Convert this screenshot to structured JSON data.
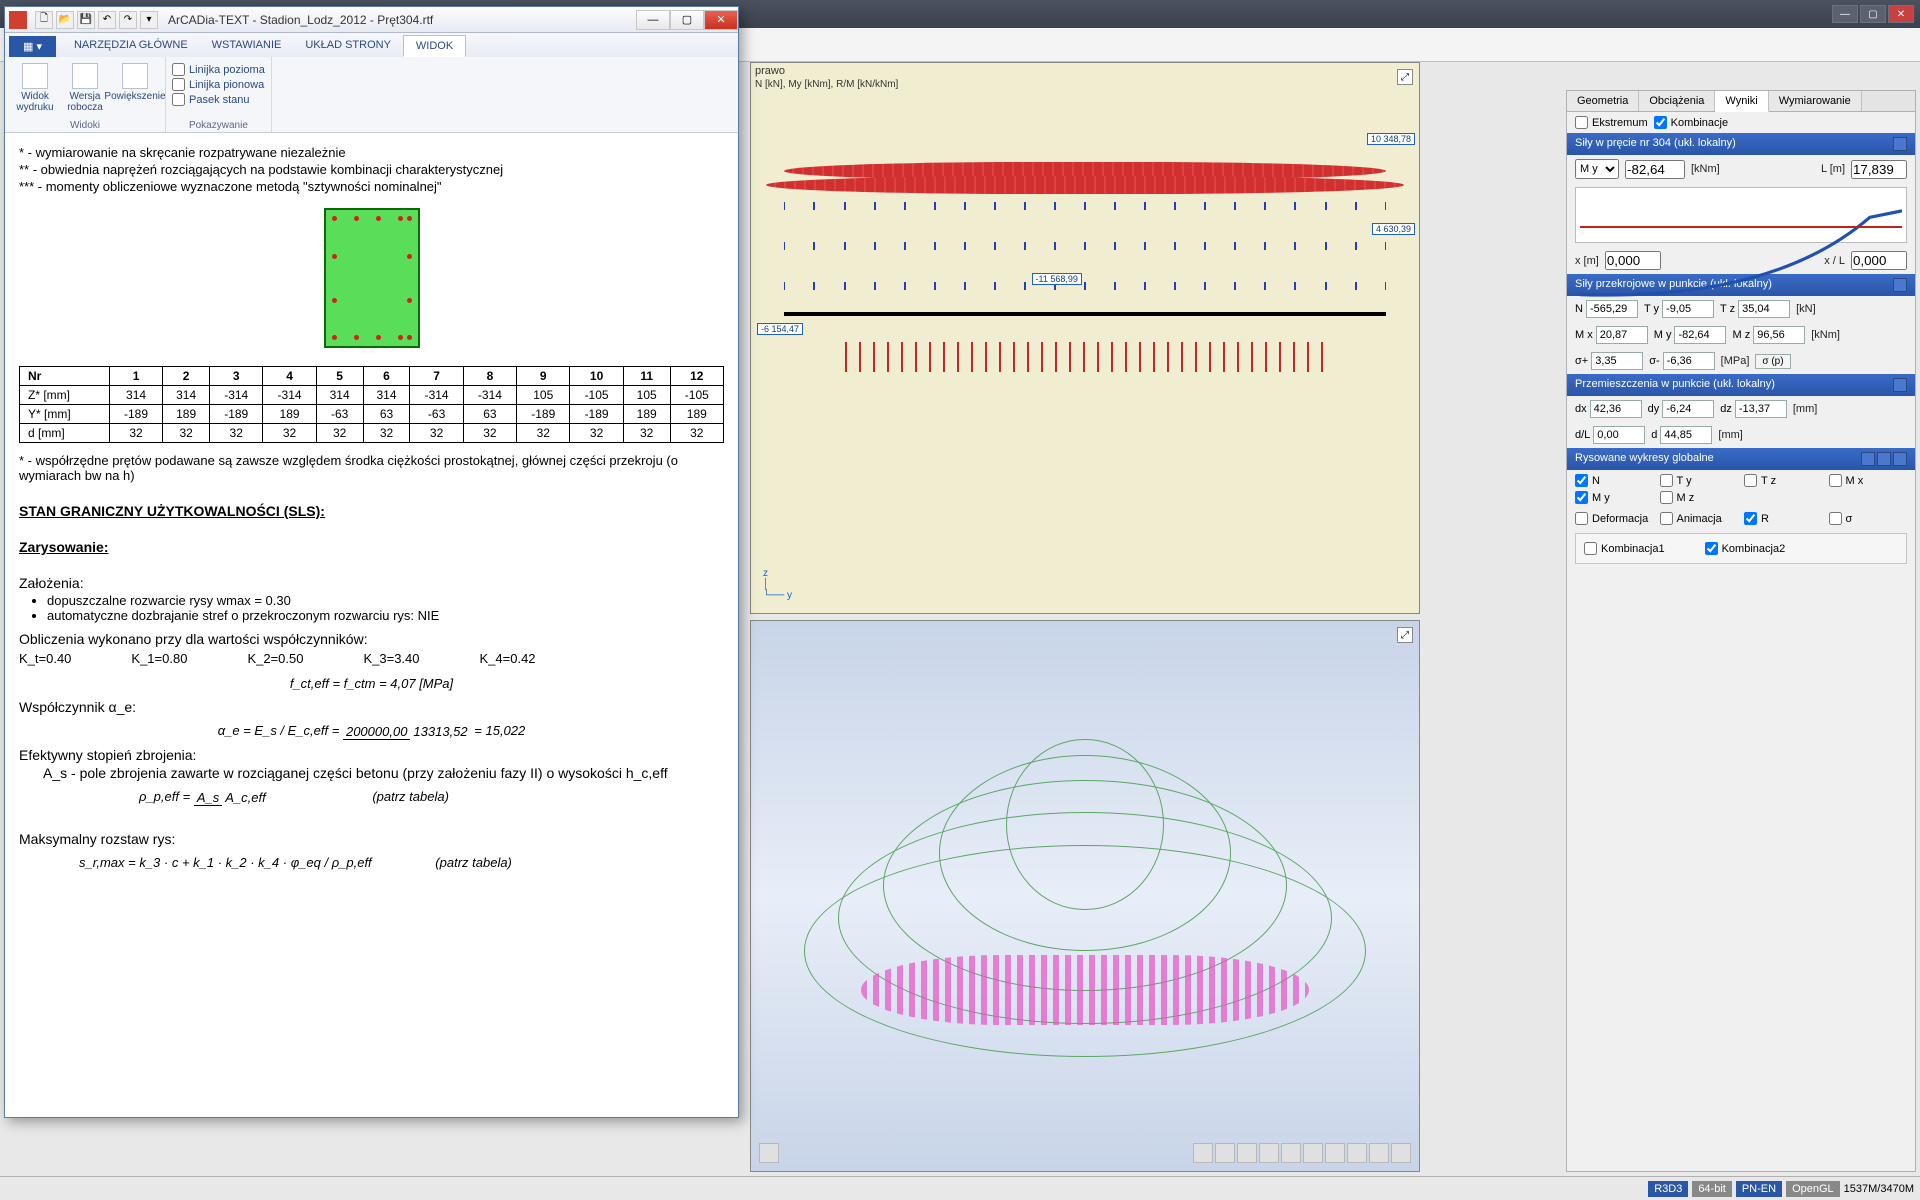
{
  "bg": {
    "toolbar_icon_count": 22
  },
  "viewports": {
    "top": {
      "label": "prawo",
      "units": "N [kN], My [kNm], R/M [kN/kNm]",
      "tags": [
        "10 348,78",
        "4 630,39",
        "-11 568,99",
        "-6 154,47"
      ],
      "axes": "x — y — z"
    }
  },
  "side": {
    "tabs": [
      "Geometria",
      "Obciążenia",
      "Wyniki",
      "Wymiarowanie"
    ],
    "active_tab": 2,
    "row1": {
      "ekstremum": "Ekstremum",
      "kombinacje": "Kombinacje"
    },
    "sec1": {
      "title": "Siły w pręcie nr 304 (ukł. lokalny)",
      "moment_type": "M y",
      "moment_val": "-82,64",
      "moment_unit": "[kNm]",
      "L_lbl": "L [m]",
      "L_val": "17,839",
      "x_lbl": "x [m]",
      "x_val": "0,000",
      "xL_lbl": "x / L",
      "xL_val": "0,000"
    },
    "sec2": {
      "title": "Siły przekrojowe w punkcie (ukł. lokalny)",
      "rows": [
        {
          "l1": "N",
          "v1": "-565,29",
          "l2": "T y",
          "v2": "-9,05",
          "l3": "T z",
          "v3": "35,04",
          "u": "[kN]"
        },
        {
          "l1": "M x",
          "v1": "20,87",
          "l2": "M y",
          "v2": "-82,64",
          "l3": "M z",
          "v3": "96,56",
          "u": "[kNm]"
        },
        {
          "l1": "σ+",
          "v1": "3,35",
          "l2": "σ-",
          "v2": "-6,36",
          "l3": "",
          "v3": "",
          "u": "[MPa]"
        }
      ],
      "sigma_btn": "σ (p)"
    },
    "sec3": {
      "title": "Przemieszczenia w punkcie (ukł. lokalny)",
      "rows": [
        {
          "l1": "dx",
          "v1": "42,36",
          "l2": "dy",
          "v2": "-6,24",
          "l3": "dz",
          "v3": "-13,37",
          "u": "[mm]"
        },
        {
          "l1": "d/L",
          "v1": "0,00",
          "l2": "",
          "v2": "",
          "l3": "d",
          "v3": "44,85",
          "u": "[mm]"
        }
      ]
    },
    "sec4": {
      "title": "Rysowane wykresy globalne",
      "checks": [
        "N",
        "T y",
        "T z",
        "M x",
        "M y",
        "M z"
      ],
      "checked": [
        true,
        false,
        false,
        false,
        true,
        false
      ],
      "row2": [
        {
          "lbl": "Deformacja",
          "c": false
        },
        {
          "lbl": "Animacja",
          "c": false
        },
        {
          "lbl": "R",
          "c": true
        },
        {
          "lbl": "σ",
          "c": false
        }
      ],
      "komb": [
        {
          "lbl": "Kombinacja1",
          "c": false
        },
        {
          "lbl": "Kombinacja2",
          "c": true
        }
      ]
    }
  },
  "status": {
    "pills": [
      "R3D3",
      "64-bit",
      "PN-EN",
      "OpenGL"
    ],
    "mem": "1537M/3470M"
  },
  "arc": {
    "title": "ArCADia-TEXT - Stadion_Lodz_2012 - Pręt304.rtf",
    "ribbon_tabs": [
      "NARZĘDZIA GŁÓWNE",
      "WSTAWIANIE",
      "UKŁAD STRONY",
      "WIDOK"
    ],
    "active_ribbon": 3,
    "group_widoki": {
      "label": "Widoki",
      "btns": [
        {
          "t": "Widok wydruku"
        },
        {
          "t": "Wersja robocza"
        },
        {
          "t": "Powiększenie"
        }
      ]
    },
    "group_pokaz": {
      "label": "Pokazywanie",
      "checks": [
        "Linijka pozioma",
        "Linijka pionowa",
        "Pasek stanu"
      ]
    },
    "doc": {
      "notes": [
        "* - wymiarowanie na skręcanie rozpatrywane niezależnie",
        "** - obwiednia naprężeń rozciągających na podstawie kombinacji charakterystycznej",
        "*** - momenty obliczeniowe wyznaczone metodą \"sztywności nominalnej\""
      ],
      "table": {
        "headers": [
          "Nr",
          "1",
          "2",
          "3",
          "4",
          "5",
          "6",
          "7",
          "8",
          "9",
          "10",
          "11",
          "12"
        ],
        "rows": [
          [
            "Z* [mm]",
            "314",
            "314",
            "-314",
            "-314",
            "314",
            "314",
            "-314",
            "-314",
            "105",
            "-105",
            "105",
            "-105"
          ],
          [
            "Y* [mm]",
            "-189",
            "189",
            "-189",
            "189",
            "-63",
            "63",
            "-63",
            "63",
            "-189",
            "-189",
            "189",
            "189"
          ],
          [
            "d [mm]",
            "32",
            "32",
            "32",
            "32",
            "32",
            "32",
            "32",
            "32",
            "32",
            "32",
            "32",
            "32"
          ]
        ]
      },
      "after_table": "* - współrzędne prętów podawane są zawsze względem środka ciężkości prostokątnej, głównej części przekroju (o wymiarach bw na h)",
      "sls_head": "STAN GRANICZNY UŻYTKOWALNOŚCI (SLS):",
      "zar": "Zarysowanie:",
      "zal": "Założenia:",
      "bullets": [
        "dopuszczalne rozwarcie rysy wmax = 0.30",
        "automatyczne dozbrajanie stref o przekroczonym rozwarciu rys: NIE"
      ],
      "obl": "Obliczenia wykonano przy dla wartości współczynników:",
      "ks": [
        "K_t=0.40",
        "K_1=0.80",
        "K_2=0.50",
        "K_3=3.40",
        "K_4=0.42"
      ],
      "eq1": "f_ct,eff = f_ctm = 4,07 [MPa]",
      "wsp": "Współczynnik α_e:",
      "eq2_top": "200000,00",
      "eq2_bot": "13313,52",
      "eq2_res": "= 15,022",
      "eq2_lhs": "α_e = E_s / E_c,eff =",
      "eff_head": "Efektywny stopień zbrojenia:",
      "eff_text": "A_s - pole zbrojenia zawarte w rozciąganej części betonu (przy założeniu fazy II) o wysokości h_c,eff",
      "eq3_lhs": "ρ_p,eff =",
      "eq3_top": "A_s",
      "eq3_bot": "A_c,eff",
      "patrz": "(patrz tabela)",
      "max_head": "Maksymalny rozstaw rys:",
      "eq4": "s_r,max = k_3 · c + k_1 · k_2 · k_4 · φ_eq / ρ_p,eff"
    }
  }
}
